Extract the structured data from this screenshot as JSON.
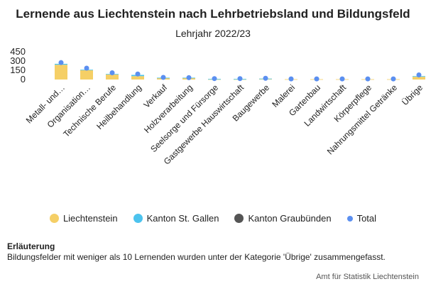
{
  "title": "Lernende aus Liechtenstein nach Lehrbetriebsland und Bildungsfeld",
  "subtitle": "Lehrjahr 2022/23",
  "note": {
    "heading": "Erläuterung",
    "text": "Bildungsfelder mit weniger als 10 Lernenden wurden unter der Kategorie 'Übrige' zusammengefasst."
  },
  "source": "Amt für Statistik Liechtenstein",
  "colors": {
    "liechtenstein": "#f5cf66",
    "stgallen": "#4cc3ee",
    "graubuenden": "#555555",
    "total": "#5b8ff0"
  },
  "chart_data": {
    "type": "bar",
    "stacked": true,
    "title": "Lernende aus Liechtenstein nach Lehrbetriebsland und Bildungsfeld",
    "subtitle": "Lehrjahr 2022/23",
    "ylim": [
      0,
      450
    ],
    "yticks": [
      "0",
      "150",
      "300",
      "450"
    ],
    "categories": [
      "Metall- und…",
      "Organisation…",
      "Technische Berufe",
      "Heilbehandlung",
      "Verkauf",
      "Holzverarbeitung",
      "Seelsorge und Fürsorge",
      "Gastgewerbe Hauswirtschaft",
      "Baugewerbe",
      "Malerei",
      "Gartenbau",
      "Landwirtschaft",
      "Körperpflege",
      "Nahrungsmittel Getränke",
      "Übrige"
    ],
    "series": [
      {
        "name": "Liechtenstein",
        "values": [
          240,
          155,
          85,
          55,
          25,
          25,
          5,
          5,
          10,
          5,
          5,
          5,
          5,
          5,
          45
        ]
      },
      {
        "name": "Kanton St. Gallen",
        "values": [
          15,
          5,
          5,
          20,
          5,
          5,
          5,
          5,
          5,
          0,
          0,
          0,
          0,
          0,
          10
        ]
      },
      {
        "name": "Kanton Graubünden",
        "values": [
          0,
          0,
          0,
          0,
          0,
          0,
          0,
          0,
          0,
          0,
          0,
          0,
          0,
          0,
          0
        ]
      }
    ],
    "total": {
      "name": "Total",
      "values": [
        275,
        185,
        110,
        90,
        35,
        30,
        15,
        15,
        20,
        10,
        10,
        10,
        10,
        10,
        75
      ]
    },
    "legend": [
      "Liechtenstein",
      "Kanton St. Gallen",
      "Kanton Graubünden",
      "Total"
    ],
    "legend_position": "bottom",
    "grid": false
  }
}
